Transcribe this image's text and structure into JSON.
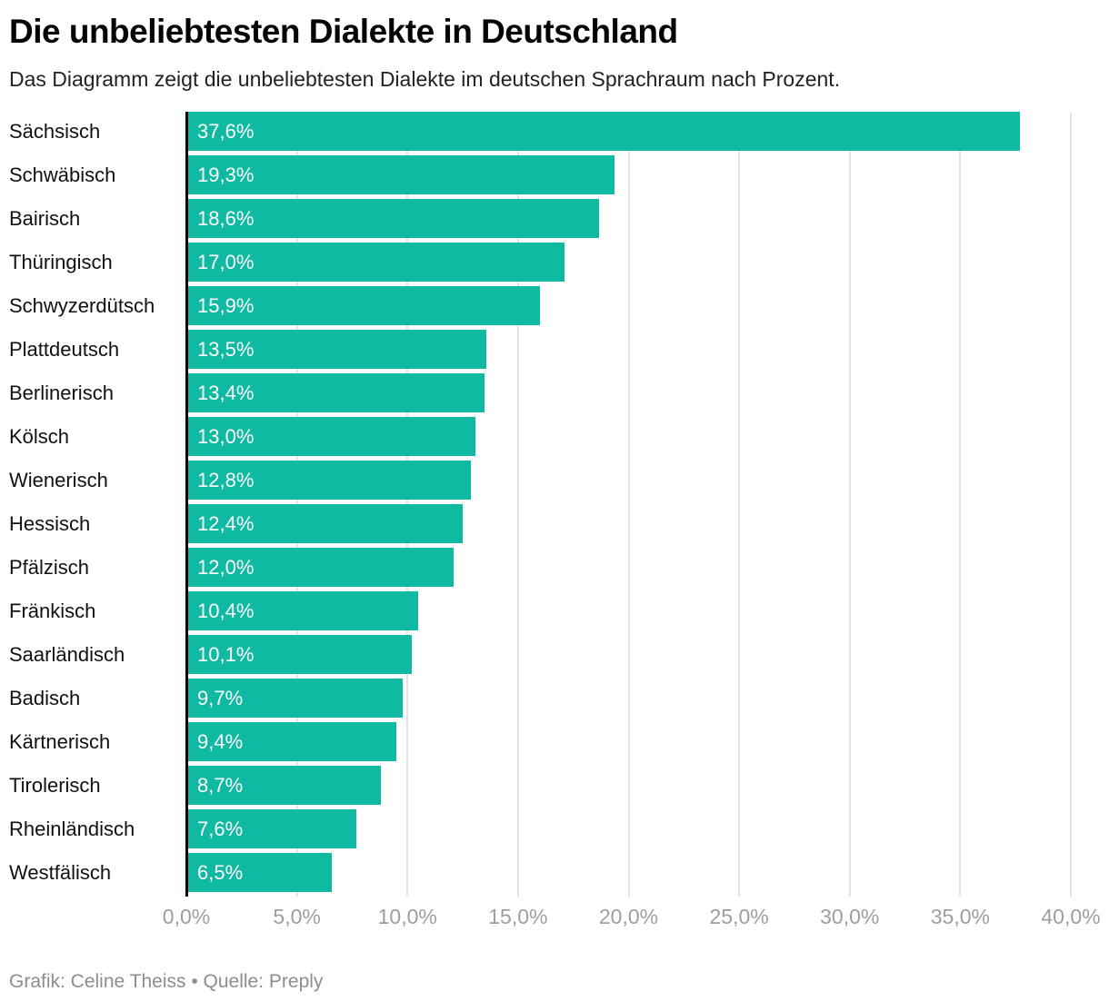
{
  "header": {
    "title": "Die unbeliebtesten Dialekte in Deutschland",
    "subtitle": "Das Diagramm zeigt die unbeliebtesten Dialekte im deutschen Sprachraum nach Prozent."
  },
  "chart_data": {
    "type": "bar",
    "orientation": "horizontal",
    "title": "Die unbeliebtesten Dialekte in Deutschland",
    "xlabel": "",
    "ylabel": "",
    "xlim": [
      0,
      40
    ],
    "grid": "vertical",
    "legend": "none",
    "bar_color": "#0fb9a2",
    "categories": [
      "Sächsisch",
      "Schwäbisch",
      "Bairisch",
      "Thüringisch",
      "Schwyzerdütsch",
      "Plattdeutsch",
      "Berlinerisch",
      "Kölsch",
      "Wienerisch",
      "Hessisch",
      "Pfälzisch",
      "Fränkisch",
      "Saarländisch",
      "Badisch",
      "Kärtnerisch",
      "Tirolerisch",
      "Rheinländisch",
      "Westfälisch"
    ],
    "values": [
      37.6,
      19.3,
      18.6,
      17.0,
      15.9,
      13.5,
      13.4,
      13.0,
      12.8,
      12.4,
      12.0,
      10.4,
      10.1,
      9.7,
      9.4,
      8.7,
      7.6,
      6.5
    ],
    "value_labels": [
      "37,6%",
      "19,3%",
      "18,6%",
      "17,0%",
      "15,9%",
      "13,5%",
      "13,4%",
      "13,0%",
      "12,8%",
      "12,4%",
      "12,0%",
      "10,4%",
      "10,1%",
      "9,7%",
      "9,4%",
      "8,7%",
      "7,6%",
      "6,5%"
    ],
    "x_tick_values": [
      0,
      5,
      10,
      15,
      20,
      25,
      30,
      35,
      40
    ],
    "x_tick_labels": [
      "0,0%",
      "5,0%",
      "10,0%",
      "15,0%",
      "20,0%",
      "25,0%",
      "30,0%",
      "35,0%",
      "40,0%"
    ]
  },
  "colors": {
    "bar": "#0fb9a2",
    "axis_line": "#000000",
    "gridline": "#e4e4e4",
    "tick_label": "#9e9e9e",
    "value_label": "#ffffff",
    "category_label": "#111111",
    "footer_text": "#8d8d8d"
  },
  "footer": {
    "credit": "Grafik: Celine Theiss • Quelle: Preply"
  }
}
